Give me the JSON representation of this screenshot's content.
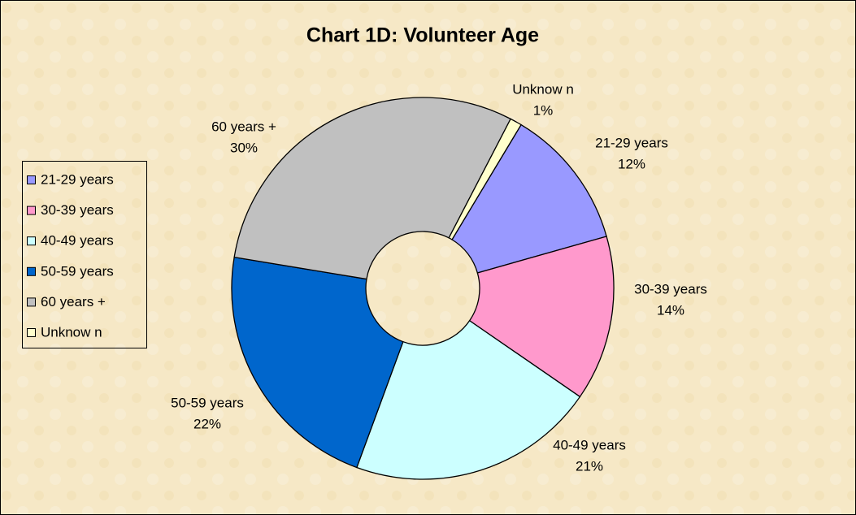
{
  "chart_data": {
    "type": "donut",
    "title": "Chart 1D: Volunteer Age",
    "categories": [
      "21-29 years",
      "30-39 years",
      "40-49 years",
      "50-59 years",
      "60 years +",
      "Unknow n"
    ],
    "values": [
      12,
      14,
      21,
      22,
      30,
      1
    ],
    "value_labels": [
      "12%",
      "14%",
      "21%",
      "22%",
      "30%",
      "1%"
    ],
    "colors": [
      "#9999ff",
      "#ff99cc",
      "#ccffff",
      "#0066cc",
      "#c0c0c0",
      "#ffffcc"
    ],
    "legend": "left"
  }
}
